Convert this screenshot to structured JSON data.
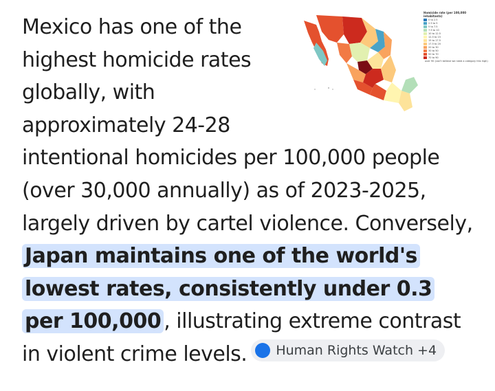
{
  "text": {
    "part1": "Mexico has one of the highest homicide rates globally, with approximately 24-28 intentional homicides per 100,000 people (over 30,000 annually) as of 2023-2025, largely driven by cartel violence. Conversely, ",
    "highlight": "Japan maintains one of the world's lowest rates, consistently under 0.3 per 100,000",
    "part2": ", illustrating extreme contrast in violent crime levels."
  },
  "source_chip": {
    "label": "Human Rights Watch +4",
    "icon": "source-favicon-icon",
    "color": "#1a73e8"
  },
  "map": {
    "legend_title": "Homicide rate (per 100,000 inhabitants)",
    "legend": [
      {
        "label": "0 to 2.5",
        "color": "#2b7bba"
      },
      {
        "label": "2.5 to 5",
        "color": "#4aa3c7"
      },
      {
        "label": "5 to 7.5",
        "color": "#7fc7c4"
      },
      {
        "label": "7.5 to 10",
        "color": "#b3dfb8"
      },
      {
        "label": "10 to 12.5",
        "color": "#e2f0b0"
      },
      {
        "label": "12.5 to 15",
        "color": "#fff5b0"
      },
      {
        "label": "15 to 17.5",
        "color": "#fde39a"
      },
      {
        "label": "17.5 to 20",
        "color": "#fcc97c"
      },
      {
        "label": "20 to 30",
        "color": "#f9a35e"
      },
      {
        "label": "30 to 50",
        "color": "#f27a45"
      },
      {
        "label": "50 to 70",
        "color": "#e4512e"
      },
      {
        "label": "70 to 90",
        "color": "#cc2a1e"
      },
      {
        "label": "over 90 (can't believe we need a category this high)",
        "color": "#7a0e14"
      }
    ]
  },
  "colors": {
    "highlight_bg": "#d3e3fd",
    "chip_bg": "#eeeff2"
  }
}
